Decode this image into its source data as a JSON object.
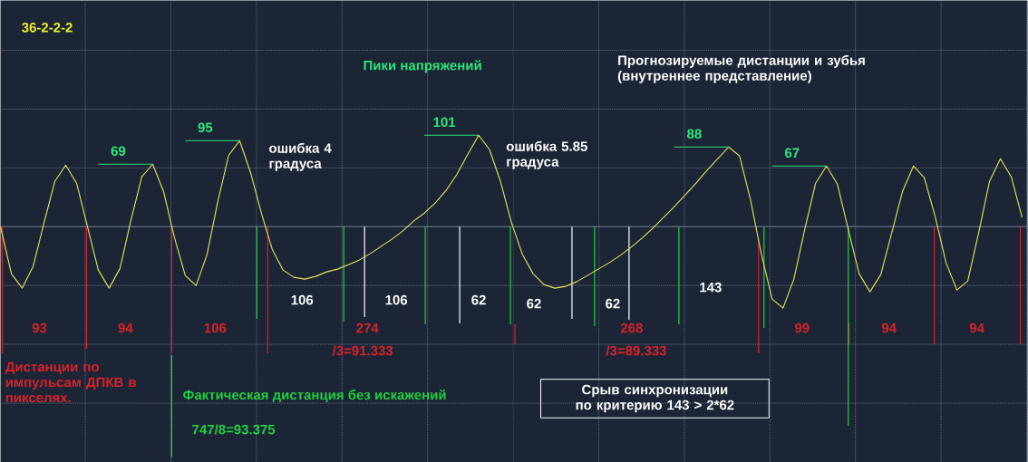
{
  "chart_data": {
    "type": "line",
    "categories": [
      null,
      null,
      null,
      null,
      null,
      null,
      null,
      null,
      null,
      null,
      null,
      null,
      null,
      null,
      null,
      null,
      null,
      null,
      null,
      null,
      null,
      null,
      null,
      null,
      null,
      null,
      null,
      null,
      null,
      null,
      null,
      null,
      null,
      null,
      null,
      null,
      null,
      null,
      null,
      null,
      null,
      null,
      null,
      null,
      null,
      null,
      null,
      null,
      null,
      null,
      null,
      null,
      null,
      null,
      null,
      null,
      null,
      null,
      null,
      null,
      null,
      null,
      null,
      null,
      null,
      null,
      null,
      null,
      null,
      null,
      null,
      null,
      null,
      null,
      null,
      null,
      null,
      null,
      null,
      null,
      null,
      null,
      null,
      null,
      null,
      null,
      null,
      null,
      null,
      null,
      null,
      null,
      null,
      null,
      null
    ],
    "values": [
      0,
      -52,
      -68,
      -44,
      4,
      50,
      68,
      48,
      0,
      -48,
      -68,
      -46,
      7,
      55,
      69,
      39,
      -12,
      -54,
      -65,
      -31,
      28,
      79,
      95,
      60,
      15,
      -25,
      -48,
      -56,
      -58,
      -55,
      -50,
      -47,
      -42,
      -37,
      -30,
      -22,
      -14,
      -5,
      6,
      15,
      26,
      40,
      58,
      80,
      101,
      85,
      50,
      5,
      -30,
      -52,
      -64,
      -68,
      -66,
      -61,
      -54,
      -47,
      -40,
      -32,
      -23,
      -13,
      -2,
      10,
      22,
      35,
      48,
      62,
      75,
      88,
      78,
      30,
      -30,
      -80,
      -90,
      -58,
      -3,
      48,
      67,
      47,
      -3,
      -52,
      -72,
      -53,
      -7,
      39,
      67,
      54,
      11,
      -40,
      -70,
      -60,
      -7,
      50,
      75,
      55,
      10
    ],
    "value_labels": [
      null,
      null,
      null,
      null,
      null,
      null,
      null,
      null,
      null,
      null,
      null,
      null,
      null,
      null,
      "69",
      null,
      null,
      null,
      null,
      null,
      null,
      null,
      "95",
      null,
      null,
      null,
      null,
      null,
      null,
      null,
      null,
      null,
      null,
      null,
      null,
      null,
      null,
      null,
      null,
      null,
      null,
      null,
      null,
      null,
      "101",
      null,
      null,
      null,
      null,
      null,
      null,
      null,
      null,
      null,
      null,
      null,
      null,
      null,
      null,
      null,
      null,
      null,
      null,
      null,
      null,
      null,
      null,
      "88",
      null,
      null,
      null,
      null,
      null,
      null,
      null,
      null,
      "67",
      null,
      null,
      null,
      null,
      null,
      null,
      null,
      null,
      null,
      null,
      null,
      null,
      null,
      null,
      null,
      null,
      null,
      null
    ],
    "color": "#e6e65a",
    "marker": "none",
    "line_style": "solid",
    "grid": true,
    "annotations": [
      "36-2-2-2",
      "Пики напряжений",
      "Прогнозируемые дистанции и зубья (внутреннее представление)",
      "ошибка 4 градуса",
      "ошибка 5.85 градуса",
      "106",
      "106",
      "62",
      "62",
      "62",
      "143",
      "93",
      "94",
      "106",
      "274",
      "/3=91.333",
      "268",
      "/3=89.333",
      "99",
      "94",
      "94",
      "Дистанции по импульсам ДПКВ в пикселях.",
      "Фактическая дистанция без искажений",
      "747/8=93.375",
      "Срыв синхронизации по критерию 143 > 2*62"
    ]
  }
}
